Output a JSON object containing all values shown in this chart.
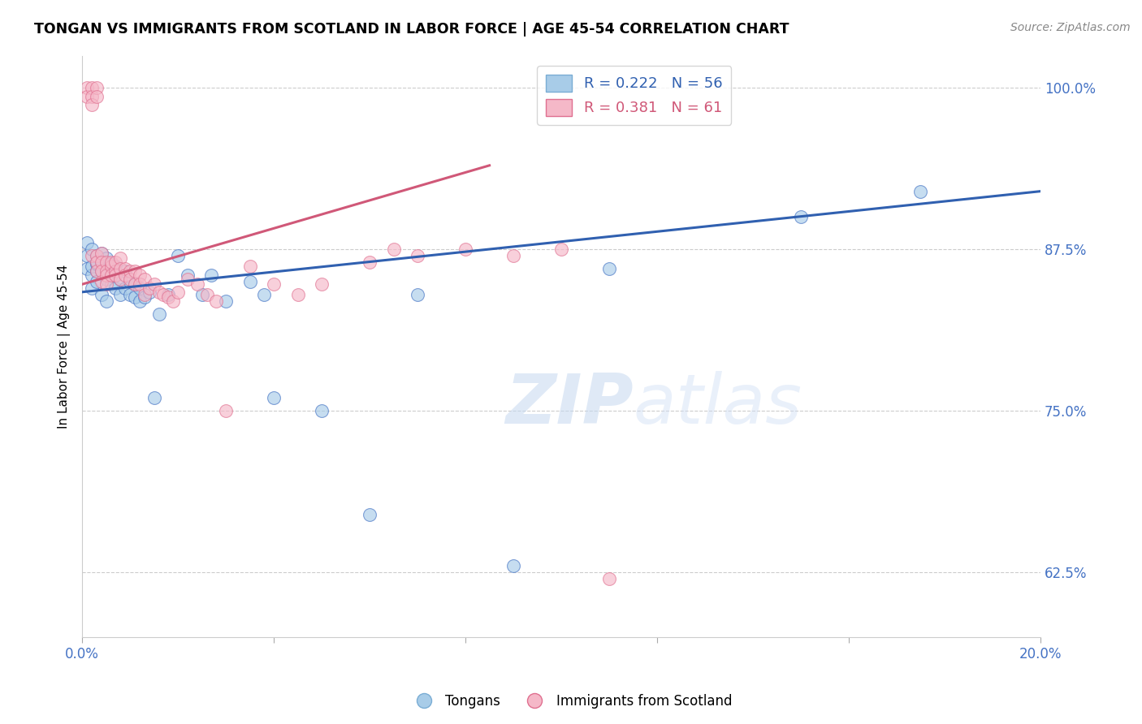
{
  "title": "TONGAN VS IMMIGRANTS FROM SCOTLAND IN LABOR FORCE | AGE 45-54 CORRELATION CHART",
  "source": "Source: ZipAtlas.com",
  "ylabel": "In Labor Force | Age 45-54",
  "yticks": [
    0.625,
    0.75,
    0.875,
    1.0
  ],
  "ytick_labels": [
    "62.5%",
    "75.0%",
    "87.5%",
    "100.0%"
  ],
  "xmin": 0.0,
  "xmax": 0.2,
  "ymin": 0.575,
  "ymax": 1.025,
  "watermark_zip": "ZIP",
  "watermark_atlas": "atlas",
  "series1_color": "#a8cce8",
  "series2_color": "#f5b8c8",
  "series1_edge": "#4472c4",
  "series2_edge": "#e07090",
  "trendline1_color": "#3060b0",
  "trendline2_color": "#d05878",
  "background_color": "#ffffff",
  "grid_color": "#cccccc",
  "R1": 0.222,
  "N1": 56,
  "R2": 0.381,
  "N2": 61,
  "tongans_x": [
    0.001,
    0.001,
    0.001,
    0.002,
    0.002,
    0.002,
    0.002,
    0.003,
    0.003,
    0.003,
    0.003,
    0.003,
    0.004,
    0.004,
    0.004,
    0.004,
    0.005,
    0.005,
    0.005,
    0.005,
    0.006,
    0.006,
    0.006,
    0.007,
    0.007,
    0.007,
    0.008,
    0.008,
    0.009,
    0.009,
    0.01,
    0.01,
    0.011,
    0.011,
    0.012,
    0.012,
    0.013,
    0.014,
    0.015,
    0.016,
    0.018,
    0.02,
    0.022,
    0.025,
    0.027,
    0.03,
    0.035,
    0.038,
    0.04,
    0.05,
    0.06,
    0.07,
    0.09,
    0.11,
    0.15,
    0.175
  ],
  "tongans_y": [
    0.86,
    0.87,
    0.88,
    0.855,
    0.862,
    0.875,
    0.845,
    0.858,
    0.864,
    0.87,
    0.865,
    0.85,
    0.858,
    0.866,
    0.872,
    0.84,
    0.852,
    0.86,
    0.868,
    0.835,
    0.848,
    0.856,
    0.864,
    0.845,
    0.855,
    0.862,
    0.84,
    0.852,
    0.845,
    0.858,
    0.84,
    0.85,
    0.838,
    0.848,
    0.835,
    0.845,
    0.838,
    0.842,
    0.76,
    0.825,
    0.84,
    0.87,
    0.855,
    0.84,
    0.855,
    0.835,
    0.85,
    0.84,
    0.76,
    0.75,
    0.67,
    0.84,
    0.63,
    0.86,
    0.9,
    0.92
  ],
  "scotland_x": [
    0.001,
    0.001,
    0.002,
    0.002,
    0.002,
    0.002,
    0.003,
    0.003,
    0.003,
    0.003,
    0.003,
    0.004,
    0.004,
    0.004,
    0.004,
    0.005,
    0.005,
    0.005,
    0.005,
    0.006,
    0.006,
    0.006,
    0.007,
    0.007,
    0.007,
    0.008,
    0.008,
    0.008,
    0.009,
    0.009,
    0.01,
    0.01,
    0.011,
    0.011,
    0.012,
    0.012,
    0.013,
    0.013,
    0.014,
    0.015,
    0.016,
    0.017,
    0.018,
    0.019,
    0.02,
    0.022,
    0.024,
    0.026,
    0.028,
    0.03,
    0.035,
    0.04,
    0.045,
    0.05,
    0.06,
    0.065,
    0.07,
    0.08,
    0.09,
    0.1,
    0.11
  ],
  "scotland_y": [
    1.0,
    0.993,
    1.0,
    0.993,
    0.987,
    0.87,
    1.0,
    0.993,
    0.87,
    0.865,
    0.858,
    0.872,
    0.865,
    0.858,
    0.85,
    0.865,
    0.858,
    0.855,
    0.848,
    0.862,
    0.855,
    0.865,
    0.858,
    0.865,
    0.855,
    0.868,
    0.86,
    0.852,
    0.86,
    0.855,
    0.858,
    0.852,
    0.858,
    0.848,
    0.855,
    0.848,
    0.852,
    0.84,
    0.845,
    0.848,
    0.842,
    0.84,
    0.838,
    0.835,
    0.842,
    0.852,
    0.848,
    0.84,
    0.835,
    0.75,
    0.862,
    0.848,
    0.84,
    0.848,
    0.865,
    0.875,
    0.87,
    0.875,
    0.87,
    0.875,
    0.62
  ],
  "trendline1_x0": 0.0,
  "trendline1_y0": 0.842,
  "trendline1_x1": 0.2,
  "trendline1_y1": 0.92,
  "trendline2_x0": 0.0,
  "trendline2_y0": 0.848,
  "trendline2_x1": 0.085,
  "trendline2_y1": 0.94
}
